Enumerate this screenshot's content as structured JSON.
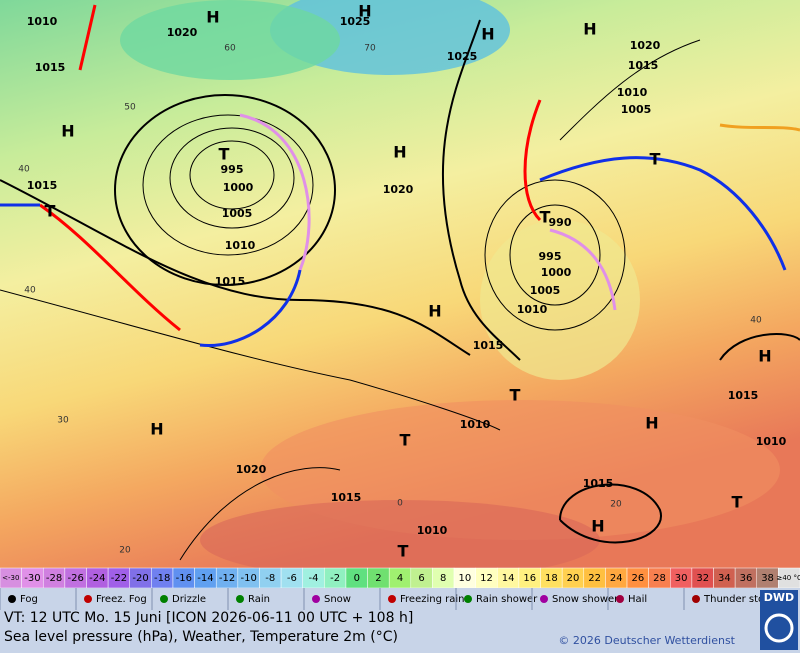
{
  "map": {
    "labels": [
      "1010",
      "1020",
      "1025",
      "H",
      "H",
      "1015",
      "H",
      "995",
      "1000",
      "T",
      "1005",
      "1010",
      "1015",
      "1015",
      "T",
      "H",
      "1020",
      "1025",
      "H",
      "H",
      "1020",
      "1015",
      "1010",
      "1005",
      "T",
      "990",
      "995",
      "1000",
      "1005",
      "1010",
      "T",
      "H",
      "1015",
      "T",
      "1010",
      "T",
      "H",
      "H",
      "1015",
      "1010",
      "1020",
      "H",
      "1015",
      "1015",
      "H",
      "T",
      "1010",
      "T"
    ],
    "isotherm_labels": [
      "60",
      "70",
      "50",
      "40",
      "40",
      "40",
      "30",
      "20",
      "20",
      "0"
    ]
  },
  "scale": {
    "labels": [
      "<-30",
      "-30",
      "-28",
      "-26",
      "-24",
      "-22",
      "-20",
      "-18",
      "-16",
      "-14",
      "-12",
      "-10",
      "-8",
      "-6",
      "-4",
      "-2",
      "0",
      "2",
      "4",
      "6",
      "8",
      "10",
      "12",
      "14",
      "16",
      "18",
      "20",
      "22",
      "24",
      "26",
      "28",
      "30",
      "32",
      "34",
      "36",
      "38",
      "≥40 °C"
    ],
    "colors": [
      "#d78fe0",
      "#e090e8",
      "#d080e0",
      "#c070e0",
      "#b060e0",
      "#a060e8",
      "#8070e8",
      "#7080f0",
      "#6090f0",
      "#60a0f0",
      "#70b0f0",
      "#80c0f0",
      "#90d0f0",
      "#a0e0f0",
      "#a0f0e0",
      "#90f0c0",
      "#60e080",
      "#70e070",
      "#a0f070",
      "#c0f090",
      "#e0ffb0",
      "#ffffe0",
      "#ffffc0",
      "#fff8a0",
      "#fff080",
      "#ffe060",
      "#ffd050",
      "#ffc040",
      "#ffa840",
      "#ff9040",
      "#f88050",
      "#f06060",
      "#e05050",
      "#d06050",
      "#c07060",
      "#b08070",
      "#e0e0e0"
    ]
  },
  "legend": [
    "Fog",
    "Freez. Fog",
    "Drizzle",
    "Rain",
    "Snow",
    "Freezing rain",
    "Rain shower",
    "Snow shower",
    "Hail",
    "Thunder storm"
  ],
  "footer": {
    "valid_time": "VT: 12 UTC Mo.  15 Juni [ICON 2026-06-11  00 UTC + 108 h]",
    "description": "Sea level pressure (hPa), Weather, Temperature 2m (°C)",
    "copyright": "© 2026 Deutscher Wetterdienst",
    "logo": "DWD"
  }
}
